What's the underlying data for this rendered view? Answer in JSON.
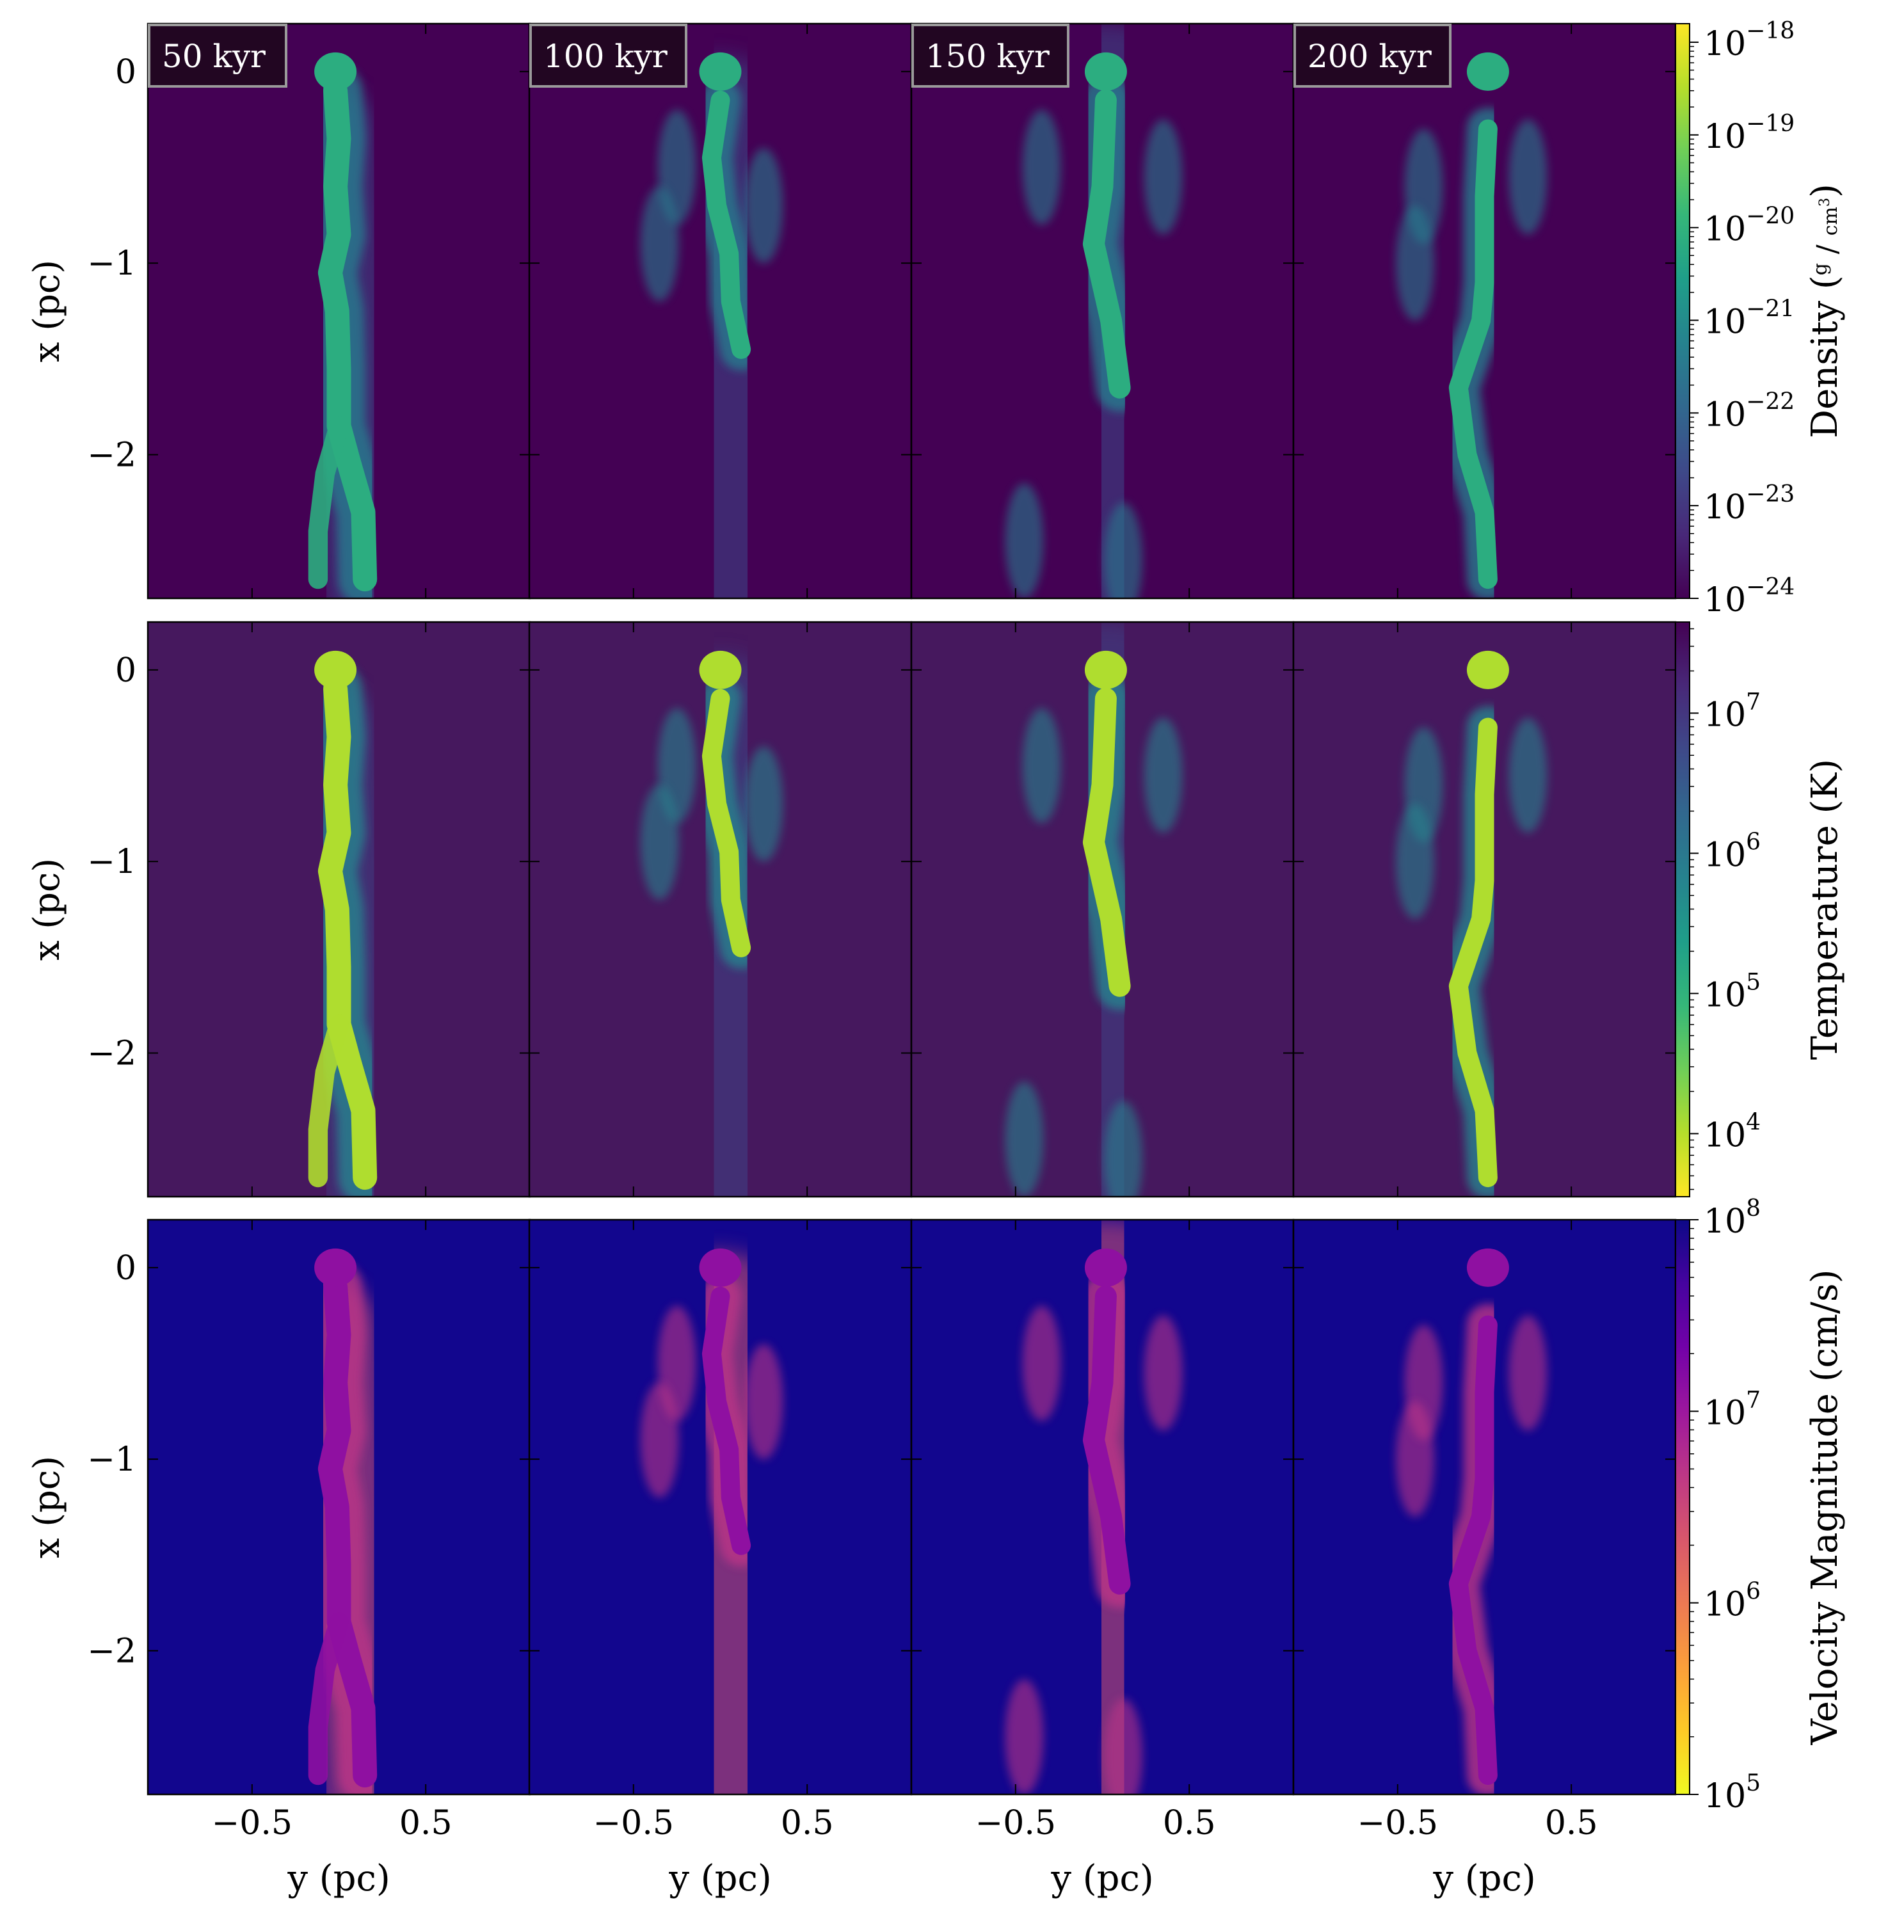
{
  "chart_data": {
    "type": "heatmap",
    "panel_titles": [
      "50 kyr",
      "100 kyr",
      "150 kyr",
      "200 kyr"
    ],
    "xlabel": "y  (pc)",
    "ylabel": "x  (pc)",
    "xlim": [
      -1.1,
      1.1
    ],
    "ylim": [
      -2.75,
      0.25
    ],
    "xticks": [
      {
        "value": -0.5,
        "label": "−0.5"
      },
      {
        "value": 0.5,
        "label": "0.5"
      }
    ],
    "yticks": [
      {
        "value": 0,
        "label": "0"
      },
      {
        "value": -1,
        "label": "−1"
      },
      {
        "value": -2,
        "label": "−2"
      }
    ],
    "rows": [
      {
        "quantity": "density",
        "colormap": "viridis",
        "background": "#440154",
        "colorbar_label": "Density",
        "colorbar_unit_num": "g",
        "colorbar_unit_den": "cm",
        "colorbar_unit_exp": "3",
        "log_range": [
          -24,
          -17.8
        ],
        "colorbar_ticks": [
          {
            "exp": -18,
            "base": "10",
            "power": "−18"
          },
          {
            "exp": -19,
            "base": "10",
            "power": "−19"
          },
          {
            "exp": -20,
            "base": "10",
            "power": "−20"
          },
          {
            "exp": -21,
            "base": "10",
            "power": "−21"
          },
          {
            "exp": -22,
            "base": "10",
            "power": "−22"
          },
          {
            "exp": -23,
            "base": "10",
            "power": "−23"
          },
          {
            "exp": -24,
            "base": "10",
            "power": "−24"
          }
        ]
      },
      {
        "quantity": "temperature",
        "colormap": "viridis_r",
        "background": "#46185e",
        "colorbar_label": "Temperature  (K)",
        "log_range": [
          3.55,
          7.65
        ],
        "colorbar_ticks": [
          {
            "exp": 7,
            "base": "10",
            "power": "7"
          },
          {
            "exp": 6,
            "base": "10",
            "power": "6"
          },
          {
            "exp": 5,
            "base": "10",
            "power": "5"
          },
          {
            "exp": 4,
            "base": "10",
            "power": "4"
          }
        ]
      },
      {
        "quantity": "velocity_magnitude",
        "colormap": "plasma_r",
        "background": "#12068e",
        "colorbar_label": "Velocity Magnitude  (cm/s)",
        "log_range": [
          5,
          8
        ],
        "colorbar_ticks": [
          {
            "exp": 8,
            "base": "10",
            "power": "8"
          },
          {
            "exp": 7,
            "base": "10",
            "power": "7"
          },
          {
            "exp": 6,
            "base": "10",
            "power": "6"
          },
          {
            "exp": 5,
            "base": "10",
            "power": "5"
          }
        ]
      }
    ]
  }
}
